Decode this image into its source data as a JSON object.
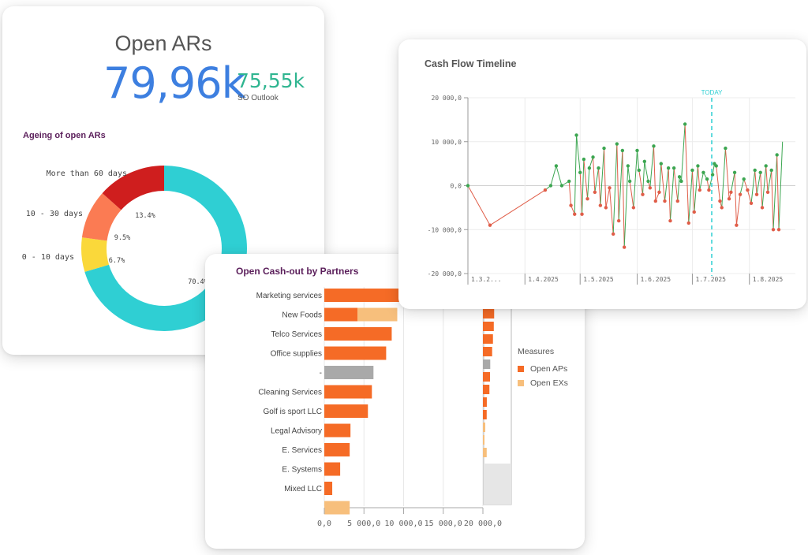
{
  "open_ars": {
    "title": "Open ARs",
    "value": "79,96k",
    "secondary_value": "75,55k",
    "secondary_label": "SO Outlook"
  },
  "ageing": {
    "title": "Ageing of open ARs",
    "segment_labels": [
      "More than 60 days",
      "10 - 30 days",
      "0 - 10 days"
    ],
    "percent_labels": [
      "13.4%",
      "9.5%",
      "6.7%",
      "70.4%"
    ]
  },
  "cash_flow": {
    "title": "Cash Flow Timeline",
    "today_label": "TODAY",
    "y_ticks": [
      "20 000,0",
      "10 000,0",
      "0,0",
      "-10 000,0",
      "-20 000,0"
    ],
    "x_ticks": [
      "1.3.2...",
      "1.4.2025",
      "1.5.2025",
      "1.6.2025",
      "1.7.2025",
      "1.8.2025"
    ]
  },
  "cash_out": {
    "title": "Open Cash-out by Partners",
    "x_ticks": [
      "0,0",
      "5 000,0",
      "10 000,0",
      "15 000,0",
      "20 000,0"
    ],
    "legend_title": "Measures",
    "legend": [
      "Open APs",
      "Open EXs"
    ]
  },
  "colors": {
    "accent_blue": "#3d7fe0",
    "accent_green": "#2fb590",
    "title_purple": "#5a1e5a",
    "teal": "#2fcfd3",
    "red": "#cf1e1e",
    "salmon": "#fb7b53",
    "yellow": "#fad83a",
    "orange": "#f56b26",
    "light_orange": "#f7bf7c",
    "gray": "#a9a9a9",
    "positive_line": "#3ca651",
    "negative_line": "#e05d48"
  },
  "chart_data": [
    {
      "type": "pie",
      "title": "Ageing of open ARs",
      "donut": true,
      "slices": [
        {
          "label": "",
          "value": 70.4,
          "color": "#2fcfd3"
        },
        {
          "label": "0 - 10 days",
          "value": 6.7,
          "color": "#fad83a"
        },
        {
          "label": "10 - 30 days",
          "value": 9.5,
          "color": "#fb7b53"
        },
        {
          "label": "More than 60 days",
          "value": 13.4,
          "color": "#cf1e1e"
        }
      ]
    },
    {
      "type": "line",
      "title": "Cash Flow Timeline",
      "ylim": [
        -20000,
        20000
      ],
      "grid": true,
      "x": [
        "2025-03-01",
        "2025-03-13",
        "2025-04-12",
        "2025-04-15",
        "2025-04-18",
        "2025-04-21",
        "2025-04-25",
        "2025-04-26",
        "2025-04-28",
        "2025-04-29",
        "2025-05-01",
        "2025-05-02",
        "2025-05-03",
        "2025-05-05",
        "2025-05-06",
        "2025-05-08",
        "2025-05-09",
        "2025-05-11",
        "2025-05-12",
        "2025-05-14",
        "2025-05-15",
        "2025-05-17",
        "2025-05-19",
        "2025-05-21",
        "2025-05-22",
        "2025-05-24",
        "2025-05-25",
        "2025-05-27",
        "2025-05-28",
        "2025-05-30",
        "2025-06-01",
        "2025-06-02",
        "2025-06-04",
        "2025-06-05",
        "2025-06-07",
        "2025-06-08",
        "2025-06-10",
        "2025-06-11",
        "2025-06-13",
        "2025-06-14",
        "2025-06-16",
        "2025-06-18",
        "2025-06-19",
        "2025-06-21",
        "2025-06-23",
        "2025-06-24",
        "2025-06-25",
        "2025-06-27",
        "2025-06-29",
        "2025-07-01",
        "2025-07-02",
        "2025-07-04",
        "2025-07-05",
        "2025-07-07",
        "2025-07-09",
        "2025-07-10",
        "2025-07-12",
        "2025-07-13",
        "2025-07-14",
        "2025-07-16",
        "2025-07-17",
        "2025-07-19",
        "2025-07-21",
        "2025-07-22",
        "2025-07-24",
        "2025-07-25",
        "2025-07-27",
        "2025-07-29",
        "2025-07-31",
        "2025-08-02",
        "2025-08-04",
        "2025-08-05",
        "2025-08-07",
        "2025-08-08",
        "2025-08-10",
        "2025-08-11",
        "2025-08-13",
        "2025-08-14",
        "2025-08-16",
        "2025-08-17",
        "2025-08-19"
      ],
      "values": [
        0,
        -9000,
        -1000,
        0,
        4500,
        0,
        1000,
        -4500,
        -6500,
        11500,
        3000,
        -6500,
        6000,
        -3000,
        4000,
        6500,
        -1500,
        4000,
        -4500,
        8500,
        -5000,
        -500,
        -11000,
        9500,
        -8000,
        8000,
        -14000,
        4500,
        1000,
        -5000,
        8000,
        3500,
        -2000,
        5500,
        1000,
        -500,
        9000,
        -3500,
        -1500,
        5000,
        -3500,
        4000,
        -8000,
        4000,
        -3500,
        2000,
        1000,
        14000,
        -8500,
        3500,
        -6000,
        4500,
        -1000,
        3000,
        1500,
        -1000,
        2500,
        5000,
        4500,
        -3500,
        -5000,
        8500,
        -3000,
        -1500,
        3000,
        -9000,
        -2000,
        1500,
        -1000,
        -4000,
        3500,
        -2000,
        3000,
        -5000,
        4500,
        -1500,
        3500,
        -10000,
        7000,
        -10000,
        10000
      ]
    },
    {
      "type": "bar",
      "orientation": "horizontal",
      "stacked": true,
      "title": "Open Cash-out by Partners",
      "categories": [
        "Marketing services",
        "New Foods",
        "Telco Services",
        "Office supplies",
        "-",
        "Cleaning Services",
        "Golf is sport LLC",
        "Legal Advisory",
        "E. Services",
        "E. Systems",
        "Mixed LLC",
        ""
      ],
      "series": [
        {
          "name": "Open APs",
          "values": [
            9500,
            4200,
            8500,
            7800,
            6200,
            6000,
            5500,
            3300,
            3200,
            2000,
            1000,
            0
          ]
        },
        {
          "name": "Open EXs",
          "values": [
            0,
            5000,
            0,
            0,
            0,
            0,
            0,
            0,
            0,
            0,
            0,
            3200
          ]
        }
      ],
      "xlim": [
        0,
        20000
      ],
      "legend_title": "Measures",
      "legend": "right"
    }
  ]
}
